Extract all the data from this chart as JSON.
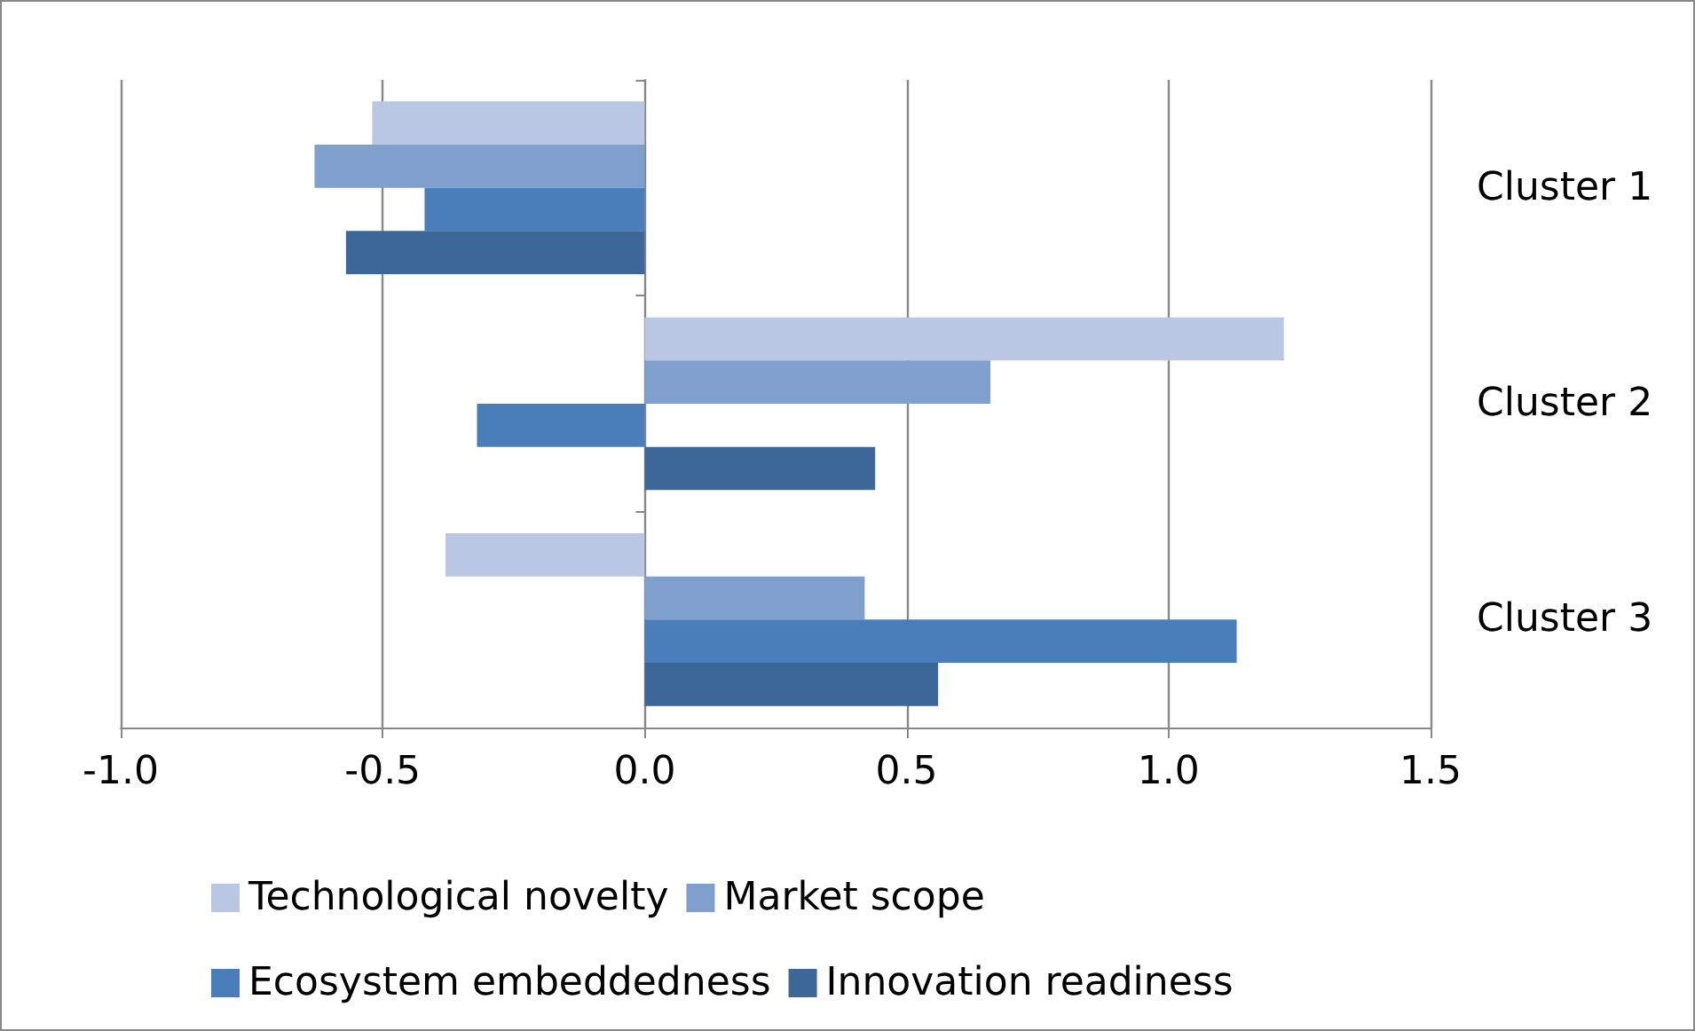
{
  "chart_data": {
    "type": "bar",
    "orientation": "horizontal",
    "categories": [
      "Cluster 1",
      "Cluster 2",
      "Cluster 3"
    ],
    "series": [
      {
        "name": "Technological novelty",
        "color": "#b9c7e2",
        "values": [
          -0.52,
          1.22,
          -0.38
        ]
      },
      {
        "name": "Market scope",
        "color": "#7f9fcc",
        "values": [
          -0.63,
          0.66,
          0.42
        ]
      },
      {
        "name": "Ecosystem embeddedness",
        "color": "#4a7ebb",
        "values": [
          -0.42,
          -0.32,
          1.13
        ]
      },
      {
        "name": "Innovation readiness",
        "color": "#3d6699",
        "values": [
          -0.57,
          0.44,
          0.56
        ]
      }
    ],
    "xlim": [
      -1.0,
      1.5
    ],
    "xticks": [
      {
        "value": -1.0,
        "label": "-1.0"
      },
      {
        "value": -0.5,
        "label": "-0.5"
      },
      {
        "value": 0,
        "label": "0.0"
      },
      {
        "value": 0.5,
        "label": "0.5"
      },
      {
        "value": 1.0,
        "label": "1.0"
      },
      {
        "value": 1.5,
        "label": "1.5"
      }
    ],
    "grid": "x",
    "legend": "bottom"
  }
}
